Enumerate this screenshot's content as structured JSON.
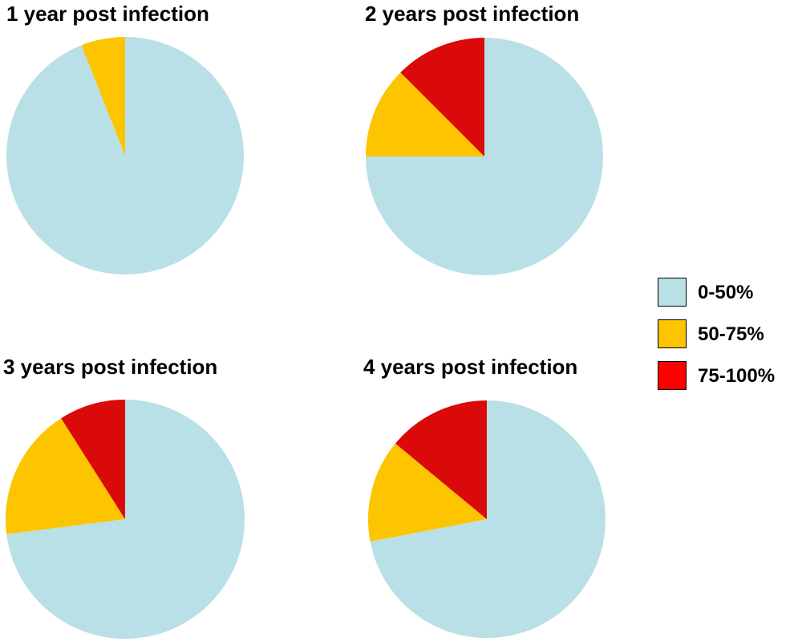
{
  "colors": {
    "0-50%": "#b9e0e6",
    "50-75%": "#fdc400",
    "75-100%": "#db0a0a"
  },
  "legend": [
    {
      "label": "0-50%",
      "color": "#b9e0e6"
    },
    {
      "label": "50-75%",
      "color": "#fdc400"
    },
    {
      "label": "75-100%",
      "color": "#ff0000"
    }
  ],
  "chart_data": [
    {
      "type": "pie",
      "title": "1 year post infection",
      "categories": [
        "0-50%",
        "50-75%",
        "75-100%"
      ],
      "values": [
        94,
        6,
        0
      ],
      "start_angle": "12 o'clock",
      "direction": "clockwise"
    },
    {
      "type": "pie",
      "title": "2 years post infection",
      "categories": [
        "0-50%",
        "50-75%",
        "75-100%"
      ],
      "values": [
        75,
        12.5,
        12.5
      ],
      "start_angle": "12 o'clock",
      "direction": "clockwise"
    },
    {
      "type": "pie",
      "title": "3 years post infection",
      "categories": [
        "0-50%",
        "50-75%",
        "75-100%"
      ],
      "values": [
        73,
        18,
        9
      ],
      "start_angle": "12 o'clock",
      "direction": "clockwise"
    },
    {
      "type": "pie",
      "title": "4 years post infection",
      "categories": [
        "0-50%",
        "50-75%",
        "75-100%"
      ],
      "values": [
        72,
        14,
        14
      ],
      "start_angle": "12 o'clock",
      "direction": "clockwise"
    }
  ]
}
